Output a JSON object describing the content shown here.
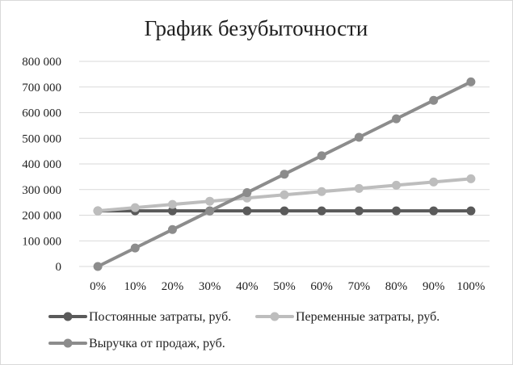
{
  "chart_data": {
    "type": "line",
    "title": "График безубыточности",
    "xlabel": "",
    "ylabel": "",
    "categories": [
      "0%",
      "10%",
      "20%",
      "30%",
      "40%",
      "50%",
      "60%",
      "70%",
      "80%",
      "90%",
      "100%"
    ],
    "ylim": [
      0,
      800000
    ],
    "y_ticks": [
      0,
      100000,
      200000,
      300000,
      400000,
      500000,
      600000,
      700000,
      800000
    ],
    "y_tick_labels": [
      "0",
      "100 000",
      "200 000",
      "300 000",
      "400 000",
      "500 000",
      "600 000",
      "700 000",
      "800 000"
    ],
    "grid": true,
    "legend_position": "bottom",
    "series": [
      {
        "name": "Постоянные затраты, руб.",
        "color": "#5a5a5a",
        "values": [
          217000,
          217000,
          217000,
          217000,
          217000,
          217000,
          217000,
          217000,
          217000,
          217000,
          217000
        ]
      },
      {
        "name": "Переменные затраты, руб.",
        "color": "#bdbdbd",
        "values": [
          217000,
          229500,
          242000,
          254500,
          267000,
          279500,
          292000,
          304500,
          317000,
          329500,
          342000
        ]
      },
      {
        "name": "Выручка от продаж, руб.",
        "color": "#8c8c8c",
        "values": [
          0,
          72000,
          144000,
          216000,
          288000,
          360000,
          432000,
          504000,
          576000,
          648000,
          720000
        ]
      }
    ]
  }
}
